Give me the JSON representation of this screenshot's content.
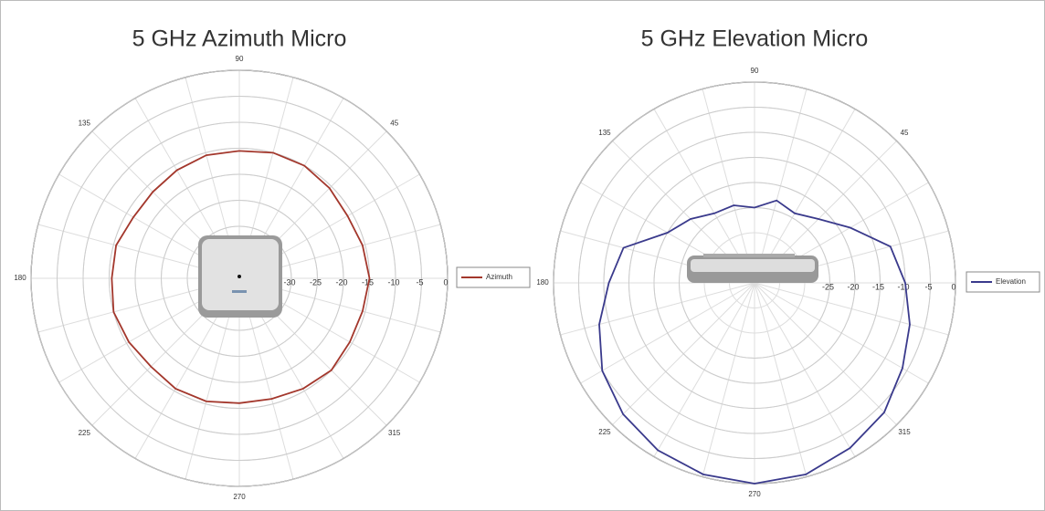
{
  "chart_data": [
    {
      "type": "polar",
      "title": "5 GHz Azimuth Micro",
      "rlim": [
        -40,
        0
      ],
      "rticks": [
        -30,
        -25,
        -20,
        -15,
        -10,
        -5,
        0
      ],
      "thetaticks": [
        45,
        90,
        135,
        180,
        225,
        270,
        315
      ],
      "series": [
        {
          "name": "Azimuth",
          "color": "#a3372c",
          "x": [
            0,
            15,
            30,
            45,
            60,
            75,
            90,
            105,
            120,
            135,
            150,
            165,
            180,
            195,
            210,
            225,
            240,
            255,
            270,
            285,
            300,
            315,
            330,
            345
          ],
          "values": [
            -15,
            -15.5,
            -16,
            -15.5,
            -15,
            -15,
            -15.5,
            -15.5,
            -16,
            -16.5,
            -16.5,
            -15.5,
            -15.5,
            -15,
            -15.5,
            -16,
            -15.5,
            -15.5,
            -16,
            -16,
            -15.5,
            -15,
            -15.5,
            -15.5
          ]
        }
      ]
    },
    {
      "type": "polar",
      "title": "5 GHz Elevation Micro",
      "rlim": [
        -40,
        0
      ],
      "rticks": [
        -25,
        -20,
        -15,
        -10,
        -5,
        0
      ],
      "thetaticks": [
        45,
        90,
        135,
        180,
        225,
        270,
        315
      ],
      "series": [
        {
          "name": "Elevation",
          "color": "#3a3a8c",
          "x": [
            0,
            15,
            30,
            45,
            60,
            75,
            90,
            105,
            120,
            135,
            150,
            165,
            180,
            195,
            210,
            225,
            240,
            255,
            270,
            285,
            300,
            315,
            330,
            345
          ],
          "values": [
            -10,
            -12,
            -18,
            -22,
            -24,
            -23,
            -25,
            -24,
            -24,
            -22,
            -20,
            -13,
            -11,
            -8,
            -5,
            -3,
            -1.5,
            -0.5,
            0,
            -0.5,
            -2,
            -3.5,
            -6,
            -8
          ]
        }
      ]
    }
  ]
}
